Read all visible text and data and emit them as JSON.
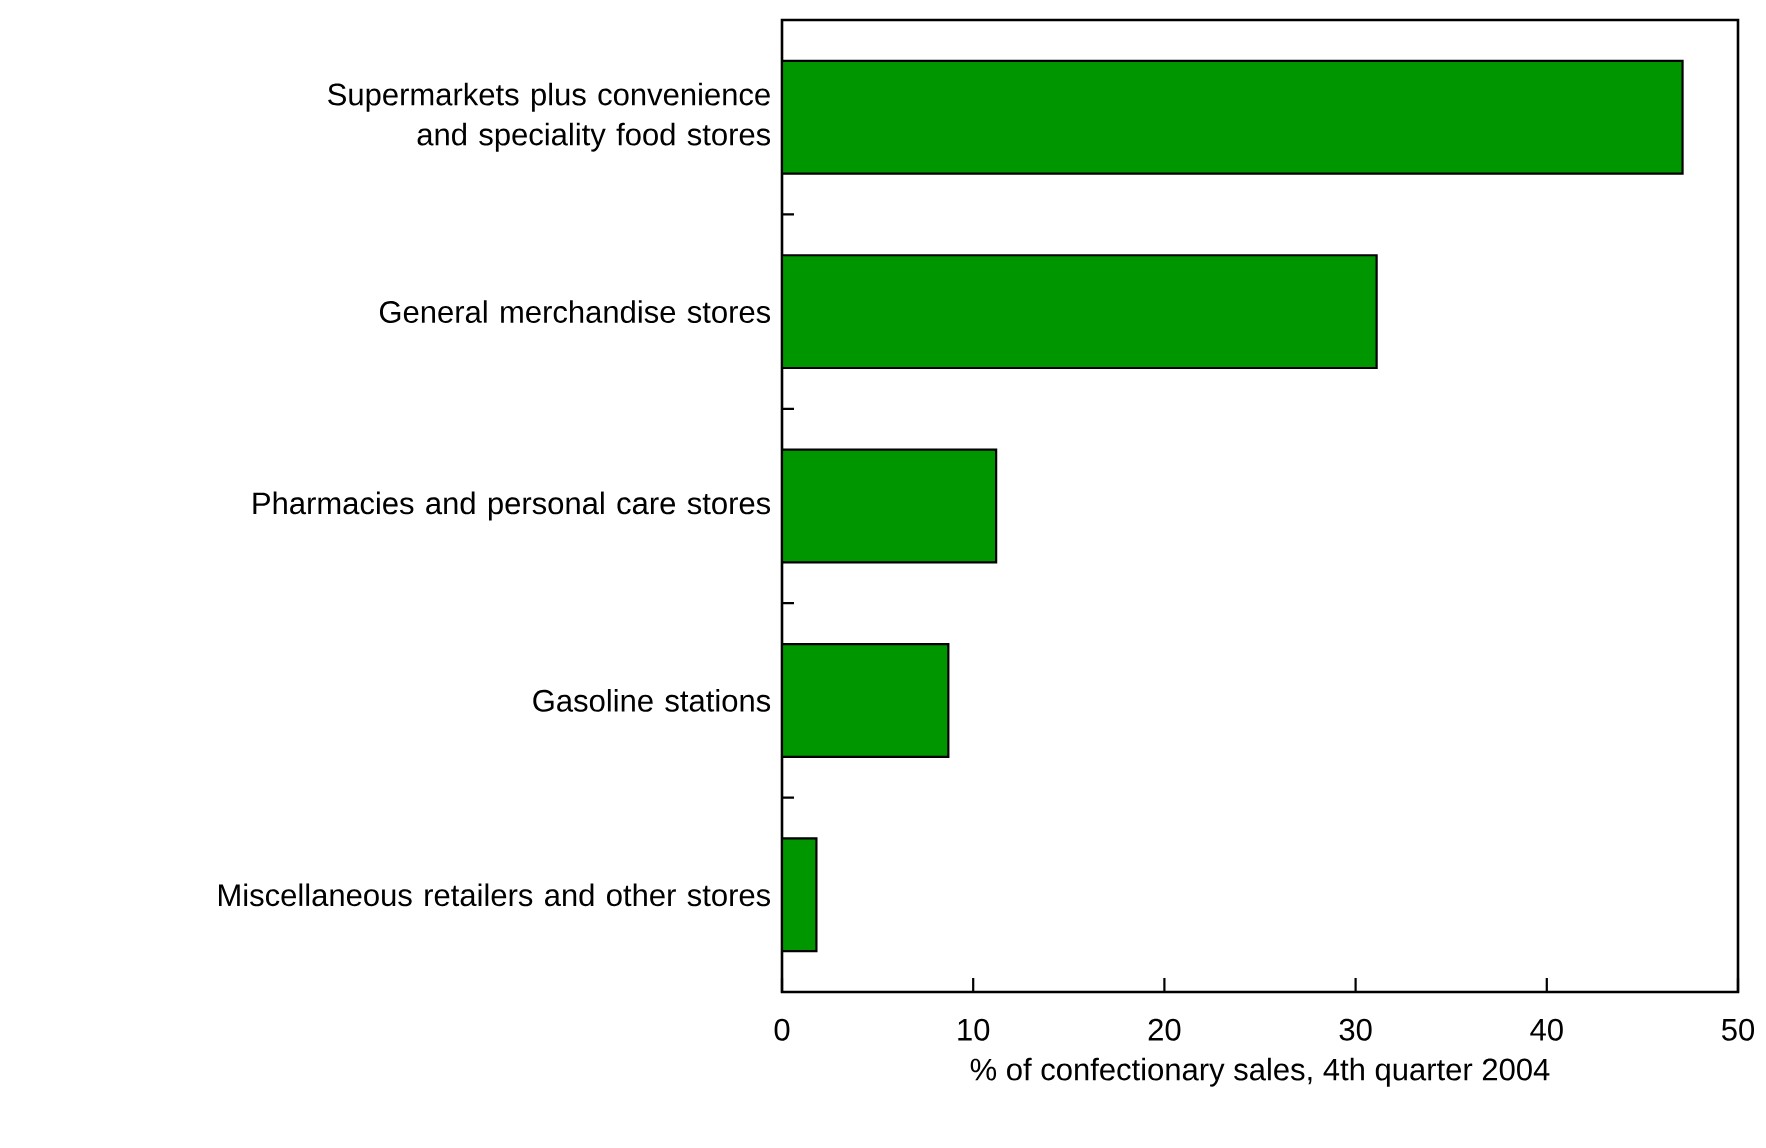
{
  "chart_data": {
    "type": "bar",
    "orientation": "horizontal",
    "xlabel": "% of confectionary sales, 4th quarter 2004",
    "categories": [
      "Supermarkets plus convenience and speciality food stores",
      "General merchandise stores",
      "Pharmacies and personal care stores",
      "Gasoline stations",
      "Miscellaneous retailers and other stores"
    ],
    "values": [
      47.1,
      31.1,
      11.2,
      8.7,
      1.8
    ],
    "color": "#009600",
    "xlim": [
      0,
      50
    ],
    "xticks": [
      0,
      10,
      20,
      30,
      40,
      50
    ],
    "grid": false
  }
}
